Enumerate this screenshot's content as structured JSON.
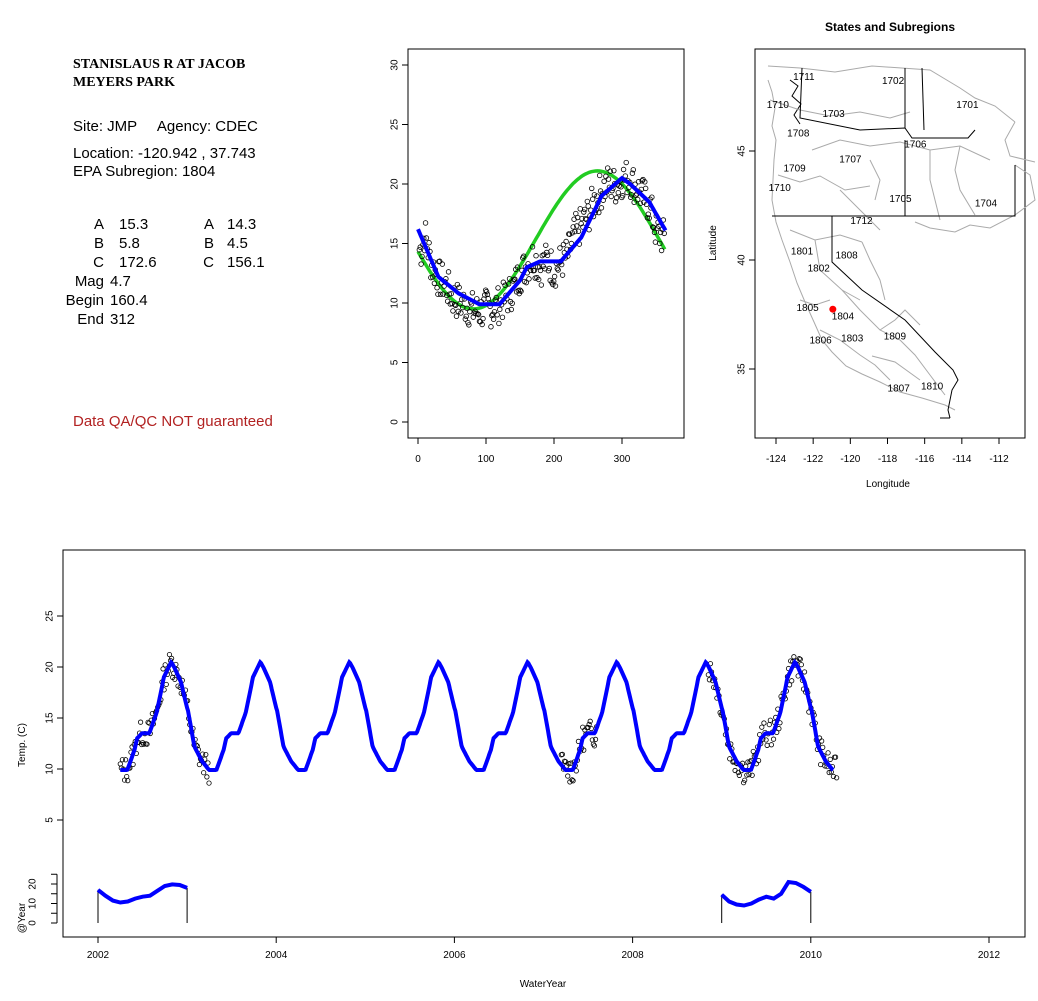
{
  "site_header": {
    "title": "STANISLAUS R AT JACOB\nMEYERS PARK",
    "site_line": "Site: JMP     Agency: CDEC",
    "location_line": "Location: -120.942 , 37.743",
    "subregion_line": "EPA Subregion: 1804",
    "qa_note": "Data QA/QC NOT guaranteed"
  },
  "params": {
    "col1": [
      {
        "label": "A",
        "value": "15.3"
      },
      {
        "label": "B",
        "value": "5.8"
      },
      {
        "label": "C",
        "value": "172.6"
      },
      {
        "label": "Mag",
        "value": "4.7"
      },
      {
        "label": "Begin",
        "value": "160.4"
      },
      {
        "label": "End",
        "value": "312"
      }
    ],
    "col2": [
      {
        "label": "A",
        "value": "14.3"
      },
      {
        "label": "B",
        "value": "4.5"
      },
      {
        "label": "C",
        "value": "156.1"
      }
    ]
  },
  "colors": {
    "fit_blue": "#0000ff",
    "fit_green": "#22cc22",
    "points": "#000000",
    "site_marker": "#ff0000",
    "qa_text": "#b22222",
    "map_lines": "#aaaaaa"
  },
  "chart_data": [
    {
      "type": "scatter",
      "name": "day-of-year",
      "xlim": [
        0,
        365
      ],
      "ylim": [
        0,
        31
      ],
      "x_ticks": [
        "0",
        "100",
        "200",
        "300"
      ],
      "y_ticks": [
        "0",
        "5",
        "10",
        "15",
        "20",
        "25",
        "30"
      ],
      "xlabel": "",
      "ylabel": "",
      "sine_fit": {
        "A": 15.3,
        "B": 5.8,
        "C": 172.6
      },
      "fit_x": [
        0,
        30,
        60,
        90,
        120,
        150,
        160,
        180,
        210,
        240,
        270,
        300,
        312,
        340,
        365
      ],
      "fit_y": [
        16.2,
        12.2,
        10.8,
        9.9,
        9.9,
        11.9,
        13.0,
        13.5,
        13.5,
        15.5,
        19.0,
        20.5,
        20.0,
        18.5,
        16.0
      ],
      "points_x": [
        5,
        10,
        20,
        30,
        40,
        50,
        60,
        70,
        80,
        90,
        100,
        110,
        120,
        130,
        140,
        150,
        160,
        170,
        180,
        190,
        200,
        210,
        220,
        230,
        240,
        250,
        260,
        270,
        280,
        290,
        300,
        310,
        320,
        330,
        340,
        350,
        360
      ],
      "points_y": [
        14.5,
        15.8,
        13.2,
        12.1,
        11.6,
        10.5,
        10.1,
        9.8,
        9.4,
        9.2,
        9.6,
        9.5,
        9.9,
        10.4,
        11.2,
        12.4,
        13.2,
        13.9,
        13.0,
        13.6,
        12.8,
        13.4,
        14.0,
        15.8,
        16.5,
        17.4,
        18.6,
        19.5,
        20.1,
        19.8,
        20.4,
        20.6,
        19.8,
        19.0,
        18.3,
        16.0,
        15.5
      ]
    },
    {
      "type": "map",
      "title": "States and Subregions",
      "xlabel": "Longitude",
      "ylabel": "Latitude",
      "xlim": [
        -125.3,
        -110.3
      ],
      "ylim": [
        32.5,
        49.7
      ],
      "x_ticks": [
        "-124",
        "-122",
        "-120",
        "-118",
        "-116",
        "-114",
        "-112"
      ],
      "y_ticks": [
        "35",
        "40",
        "45"
      ],
      "site": {
        "lon": -120.942,
        "lat": 37.743
      },
      "regions": [
        {
          "label": "1711",
          "lon": -122.5,
          "lat": 48.4
        },
        {
          "label": "1710",
          "lon": -123.9,
          "lat": 47.1
        },
        {
          "label": "1702",
          "lon": -117.7,
          "lat": 48.2
        },
        {
          "label": "1701",
          "lon": -113.7,
          "lat": 47.1
        },
        {
          "label": "1703",
          "lon": -120.9,
          "lat": 46.7
        },
        {
          "label": "1708",
          "lon": -122.8,
          "lat": 45.8
        },
        {
          "label": "1706",
          "lon": -116.5,
          "lat": 45.3
        },
        {
          "label": "1707",
          "lon": -120.0,
          "lat": 44.6
        },
        {
          "label": "1709",
          "lon": -123.0,
          "lat": 44.2
        },
        {
          "label": "1710",
          "lon": -123.8,
          "lat": 43.3
        },
        {
          "label": "1705",
          "lon": -117.3,
          "lat": 42.8
        },
        {
          "label": "1704",
          "lon": -112.7,
          "lat": 42.6
        },
        {
          "label": "1712",
          "lon": -119.4,
          "lat": 41.8
        },
        {
          "label": "1801",
          "lon": -122.6,
          "lat": 40.4
        },
        {
          "label": "1808",
          "lon": -120.2,
          "lat": 40.2
        },
        {
          "label": "1802",
          "lon": -121.7,
          "lat": 39.6
        },
        {
          "label": "1805",
          "lon": -122.3,
          "lat": 37.8
        },
        {
          "label": "1804",
          "lon": -120.4,
          "lat": 37.4
        },
        {
          "label": "1806",
          "lon": -121.6,
          "lat": 36.3
        },
        {
          "label": "1803",
          "lon": -119.9,
          "lat": 36.4
        },
        {
          "label": "1809",
          "lon": -117.6,
          "lat": 36.5
        },
        {
          "label": "1807",
          "lon": -117.4,
          "lat": 34.1
        },
        {
          "label": "1810",
          "lon": -115.6,
          "lat": 34.2
        }
      ]
    },
    {
      "type": "line",
      "name": "time-series",
      "xlabel": "WaterYear",
      "ylabel": "Temp. (C)",
      "xlim": [
        2001.6,
        2012.4
      ],
      "ylim": [
        0,
        30
      ],
      "x_ticks": [
        "2002",
        "2004",
        "2006",
        "2008",
        "2010",
        "2012"
      ],
      "y_ticks": [
        "5",
        "10",
        "15",
        "20",
        "25"
      ],
      "fit_start_year": 2002.25,
      "fit_end_year": 2010.25,
      "observed_periods": [
        [
          2002.25,
          2003.25
        ],
        [
          2007.2,
          2007.6
        ],
        [
          2008.85,
          2010.3
        ]
      ],
      "sub_panel": {
        "ylabel": "@Year",
        "y_ticks": [
          "0",
          "10",
          "20"
        ],
        "years": [
          {
            "start": 2002.0,
            "end": 2003.0,
            "values": [
              17.0,
              14.0,
              11.5,
              10.5,
              11.0,
              12.5,
              13.5,
              14.0,
              16.5,
              19.0,
              19.8,
              19.5,
              18.0
            ]
          },
          {
            "start": 2009.0,
            "end": 2010.0,
            "values": [
              14.5,
              11.0,
              9.5,
              9.0,
              10.0,
              12.0,
              13.5,
              12.5,
              15.0,
              21.0,
              20.5,
              18.5,
              16.0
            ]
          }
        ]
      }
    }
  ]
}
